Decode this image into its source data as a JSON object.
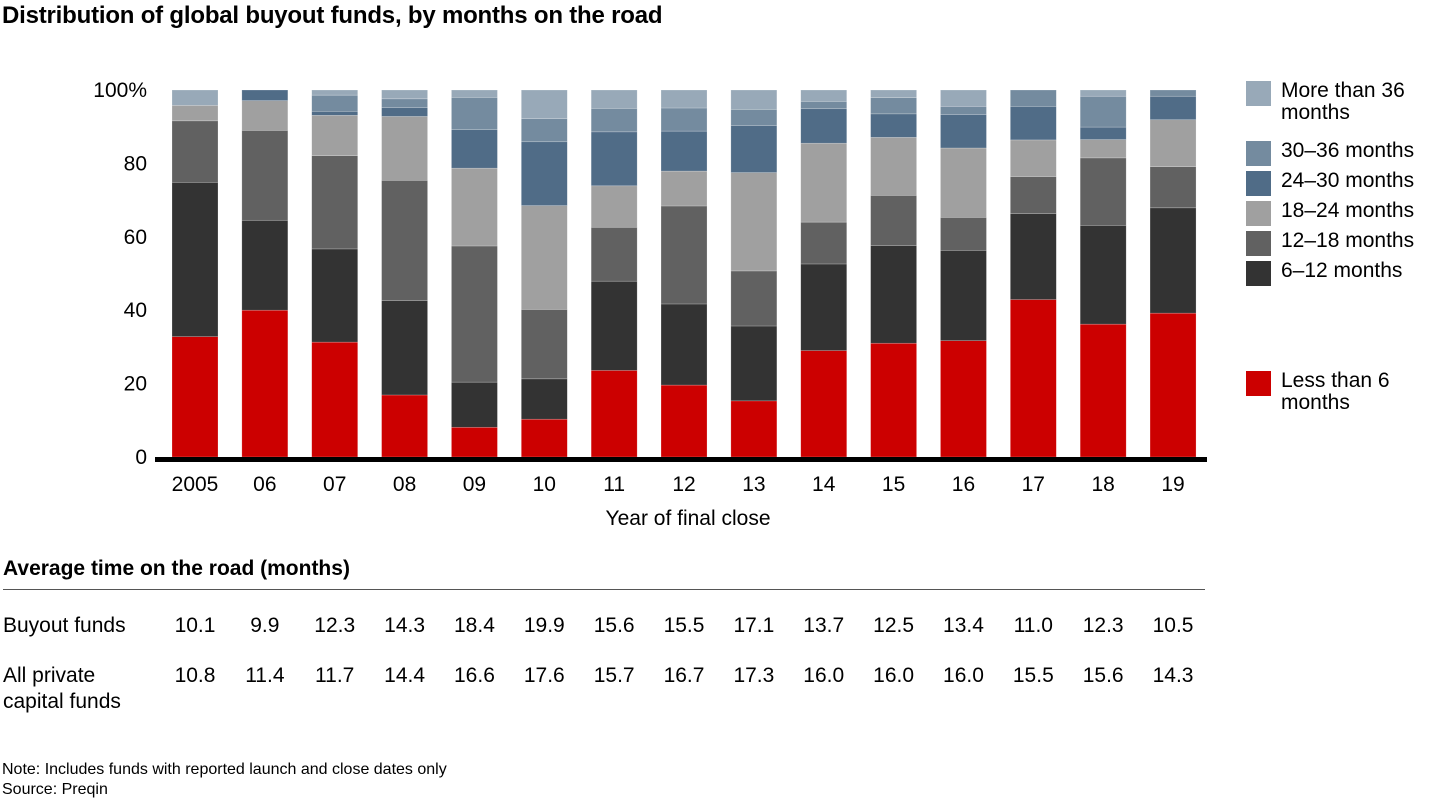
{
  "title": "Distribution of global buyout funds, by months on the road",
  "chart_data": {
    "type": "bar",
    "stacked": true,
    "title": "Distribution of global buyout funds, by months on the road",
    "xlabel": "Year of final close",
    "ylabel": "",
    "ylim": [
      0,
      100
    ],
    "yticks": [
      {
        "value": 0,
        "label": "0"
      },
      {
        "value": 20,
        "label": "20"
      },
      {
        "value": 40,
        "label": "40"
      },
      {
        "value": 60,
        "label": "60"
      },
      {
        "value": 80,
        "label": "80"
      },
      {
        "value": 100,
        "label": "100%"
      }
    ],
    "categories": [
      "2005",
      "06",
      "07",
      "08",
      "09",
      "10",
      "11",
      "12",
      "13",
      "14",
      "15",
      "16",
      "17",
      "18",
      "19"
    ],
    "legend_position": "right",
    "series": [
      {
        "name": "Less than 6 months",
        "color": "#cc0000",
        "values": [
          32.8,
          40.0,
          31.3,
          16.9,
          8.1,
          10.3,
          23.6,
          19.6,
          15.3,
          29.0,
          31.0,
          31.7,
          42.9,
          36.2,
          39.2
        ]
      },
      {
        "name": "6–12 months",
        "color": "#333333",
        "values": [
          42.0,
          24.5,
          25.4,
          25.7,
          12.3,
          11.0,
          24.3,
          22.1,
          20.4,
          23.6,
          26.6,
          24.6,
          23.4,
          26.9,
          28.7
        ]
      },
      {
        "name": "12–18 months",
        "color": "#616161",
        "values": [
          16.8,
          24.5,
          25.4,
          32.8,
          37.1,
          18.9,
          14.7,
          26.7,
          15.0,
          11.4,
          13.7,
          9.0,
          10.1,
          18.4,
          11.2
        ]
      },
      {
        "name": "18–24 months",
        "color": "#a0a0a0",
        "values": [
          4.2,
          8.1,
          11.0,
          17.4,
          21.2,
          28.3,
          11.3,
          9.5,
          26.8,
          21.5,
          15.8,
          18.9,
          10.0,
          5.0,
          12.8
        ]
      },
      {
        "name": "24–30 months",
        "color": "#506c87",
        "values": [
          0,
          2.9,
          1.1,
          2.4,
          10.5,
          17.4,
          14.7,
          10.9,
          12.8,
          9.4,
          6.4,
          9.1,
          9.1,
          3.4,
          6.4
        ]
      },
      {
        "name": "30–36 months",
        "color": "#748b9f",
        "values": [
          0,
          0,
          4.4,
          2.4,
          8.8,
          6.3,
          6.4,
          6.3,
          4.4,
          2.0,
          4.4,
          2.2,
          4.5,
          8.4,
          1.7
        ]
      },
      {
        "name": "More than 36 months",
        "color": "#98a9b8",
        "values": [
          4.2,
          0,
          1.4,
          2.4,
          2.0,
          7.8,
          5.0,
          4.9,
          5.3,
          3.1,
          2.1,
          4.5,
          0,
          1.7,
          0
        ]
      }
    ]
  },
  "legend": [
    {
      "label": "More than 36 months",
      "color": "#98a9b8"
    },
    {
      "label": "30–36 months",
      "color": "#748b9f"
    },
    {
      "label": "24–30 months",
      "color": "#506c87"
    },
    {
      "label": "18–24 months",
      "color": "#a0a0a0"
    },
    {
      "label": "12–18 months",
      "color": "#616161"
    },
    {
      "label": "6–12 months",
      "color": "#333333"
    },
    {
      "label": "Less than 6 months",
      "color": "#cc0000"
    }
  ],
  "table": {
    "title": "Average time on the road (months)",
    "rows": [
      {
        "label": "Buyout funds",
        "values": [
          "10.1",
          "9.9",
          "12.3",
          "14.3",
          "18.4",
          "19.9",
          "15.6",
          "15.5",
          "17.1",
          "13.7",
          "12.5",
          "13.4",
          "11.0",
          "12.3",
          "10.5"
        ]
      },
      {
        "label": "All private capital funds",
        "values": [
          "10.8",
          "11.4",
          "11.7",
          "14.4",
          "16.6",
          "17.6",
          "15.7",
          "16.7",
          "17.3",
          "16.0",
          "16.0",
          "16.0",
          "15.5",
          "15.6",
          "14.3"
        ]
      }
    ]
  },
  "note": "Note: Includes funds with reported launch and close dates only",
  "source": "Source: Preqin"
}
